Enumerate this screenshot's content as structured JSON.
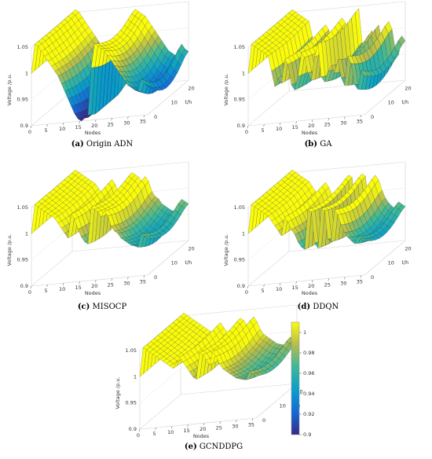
{
  "chart_data": {
    "type": "surface3d",
    "panels": [
      {
        "id": "a",
        "label": "(a)",
        "name": "Origin ADN",
        "xlabel": "Nodes",
        "ylabel": "t/h",
        "zlabel": "Voltage /p.u.",
        "xticks": [
          "0",
          "5",
          "10",
          "15",
          "20",
          "25",
          "30",
          "35"
        ],
        "yticks": [
          "0",
          "10",
          "20"
        ],
        "zticks": [
          "0.9",
          "0.95",
          "1",
          "1.05"
        ],
        "zlim": [
          0.9,
          1.05
        ],
        "xlim": [
          0,
          36
        ],
        "ylim": [
          0,
          24
        ],
        "profile": [
          1.0,
          1.055,
          1.05,
          1.04,
          1.03,
          1.02,
          1.01,
          1.0,
          0.99,
          0.975,
          0.96,
          0.945,
          0.93,
          0.915,
          0.905,
          0.9,
          0.905,
          0.91,
          1.0,
          1.045,
          1.04,
          1.035,
          1.03,
          1.02,
          1.01,
          1.0,
          0.99,
          0.98,
          0.97,
          0.96,
          0.955,
          0.95,
          0.948,
          0.97,
          0.96,
          0.955
        ],
        "load_amp": 1.0
      },
      {
        "id": "b",
        "label": "(b)",
        "name": "GA",
        "xlabel": "Nodes",
        "ylabel": "t/h",
        "zlabel": "Voltage /p.u.",
        "xticks": [
          "0",
          "5",
          "10",
          "15",
          "20",
          "25",
          "30",
          "35"
        ],
        "yticks": [
          "0",
          "10",
          "20"
        ],
        "zticks": [
          "0.9",
          "0.95",
          "1",
          "1.05"
        ],
        "zlim": [
          0.9,
          1.05
        ],
        "xlim": [
          0,
          36
        ],
        "ylim": [
          0,
          24
        ],
        "profile": [
          1.0,
          1.055,
          1.05,
          1.045,
          1.04,
          1.035,
          1.03,
          1.0,
          0.97,
          0.985,
          0.975,
          1.02,
          1.01,
          0.97,
          0.96,
          0.985,
          1.03,
          1.02,
          0.99,
          0.975,
          1.02,
          1.045,
          0.98,
          0.97,
          0.99,
          1.0,
          0.985,
          1.01,
          0.975,
          0.96,
          1.015,
          1.0,
          0.96,
          0.95,
          0.985,
          0.975
        ],
        "load_amp": 0.7
      },
      {
        "id": "c",
        "label": "(c)",
        "name": "MISOCP",
        "xlabel": "Nodes",
        "ylabel": "t/h",
        "zlabel": "Voltage /p.u.",
        "xticks": [
          "0",
          "5",
          "10",
          "15",
          "20",
          "25",
          "30",
          "35"
        ],
        "yticks": [
          "0",
          "10",
          "20"
        ],
        "zticks": [
          "0.9",
          "0.95",
          "1",
          "1.05"
        ],
        "zlim": [
          0.9,
          1.05
        ],
        "xlim": [
          0,
          36
        ],
        "ylim": [
          0,
          24
        ],
        "profile": [
          1.0,
          1.055,
          1.05,
          1.045,
          1.04,
          1.035,
          1.03,
          1.025,
          1.015,
          1.005,
          0.995,
          0.985,
          1.03,
          1.02,
          1.0,
          0.985,
          0.975,
          0.97,
          1.04,
          1.035,
          1.03,
          1.02,
          1.03,
          1.02,
          1.0,
          0.99,
          0.985,
          0.975,
          0.97,
          0.965,
          0.96,
          0.958,
          0.955,
          0.98,
          0.975,
          0.97
        ],
        "load_amp": 0.6
      },
      {
        "id": "d",
        "label": "(d)",
        "name": "DDQN",
        "xlabel": "Nodes",
        "ylabel": "t/h",
        "zlabel": "Voltage /p.u.",
        "xticks": [
          "0",
          "5",
          "10",
          "15",
          "20",
          "25",
          "30",
          "35"
        ],
        "yticks": [
          "0",
          "10",
          "20"
        ],
        "zticks": [
          "0.9",
          "0.95",
          "1",
          "1.05"
        ],
        "zlim": [
          0.9,
          1.05
        ],
        "xlim": [
          0,
          36
        ],
        "ylim": [
          0,
          24
        ],
        "profile": [
          1.0,
          1.055,
          1.05,
          1.045,
          1.04,
          1.035,
          1.03,
          1.02,
          1.01,
          1.0,
          0.99,
          1.025,
          1.015,
          1.0,
          0.99,
          0.975,
          0.965,
          0.96,
          1.035,
          1.03,
          0.97,
          0.96,
          1.035,
          1.03,
          0.975,
          0.97,
          1.03,
          1.02,
          1.0,
          0.985,
          0.975,
          0.968,
          0.962,
          0.975,
          0.97,
          0.965
        ],
        "load_amp": 0.6
      },
      {
        "id": "e",
        "label": "(e)",
        "name": "GCNDDPG",
        "xlabel": "Nodes",
        "ylabel": "t/h",
        "zlabel": "Voltage /p.u.",
        "xticks": [
          "0",
          "5",
          "10",
          "15",
          "20",
          "25",
          "30",
          "35"
        ],
        "yticks": [
          "0",
          "10",
          "20"
        ],
        "zticks": [
          "0.9",
          "0.95",
          "1",
          "1.05"
        ],
        "zlim": [
          0.9,
          1.05
        ],
        "xlim": [
          0,
          36
        ],
        "ylim": [
          0,
          24
        ],
        "profile": [
          1.0,
          1.055,
          1.05,
          1.045,
          1.04,
          1.035,
          1.03,
          1.025,
          1.02,
          1.015,
          1.01,
          1.02,
          1.03,
          1.02,
          1.01,
          1.0,
          0.99,
          0.985,
          1.035,
          1.03,
          1.02,
          1.01,
          1.035,
          1.025,
          1.01,
          1.0,
          0.995,
          0.99,
          0.985,
          0.98,
          0.978,
          0.976,
          0.975,
          0.99,
          0.985,
          0.98
        ],
        "load_amp": 0.45
      }
    ],
    "colorbar": {
      "ticks": [
        "0.9",
        "0.92",
        "0.94",
        "0.96",
        "0.98",
        "1"
      ],
      "range": [
        0.9,
        1.01
      ]
    }
  }
}
